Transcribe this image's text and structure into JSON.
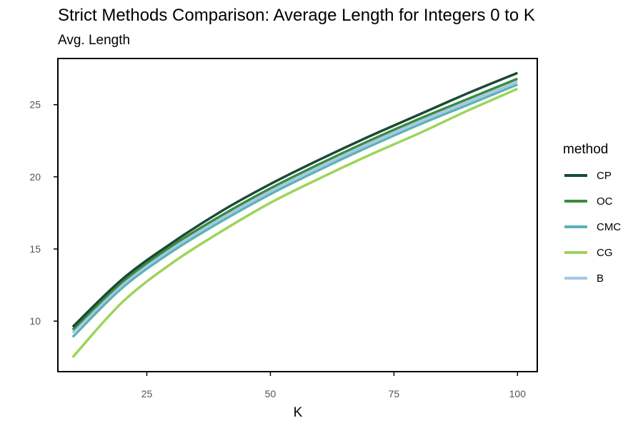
{
  "chart_data": {
    "type": "line",
    "title": "Strict Methods Comparison: Average Length for Integers 0 to K",
    "subtitle": "Avg. Length",
    "xlabel": "K",
    "ylabel": "",
    "xlim": [
      7,
      104
    ],
    "ylim": [
      6.5,
      28.2
    ],
    "xticks": [
      25,
      50,
      75,
      100
    ],
    "yticks": [
      10,
      15,
      20,
      25
    ],
    "grid": false,
    "legend_title": "method",
    "legend_position": "right",
    "x": [
      10,
      20,
      30,
      40,
      50,
      60,
      70,
      80,
      90,
      100
    ],
    "series": [
      {
        "name": "CP",
        "color": "#1a4a35",
        "values": [
          9.6,
          12.9,
          15.4,
          17.6,
          19.5,
          21.2,
          22.8,
          24.3,
          25.8,
          27.2
        ]
      },
      {
        "name": "OC",
        "color": "#3a8c3f",
        "values": [
          9.4,
          12.7,
          15.2,
          17.3,
          19.2,
          20.9,
          22.5,
          24.0,
          25.4,
          26.8
        ]
      },
      {
        "name": "CMC",
        "color": "#5ab3b5",
        "values": [
          8.9,
          12.3,
          14.8,
          16.9,
          18.8,
          20.5,
          22.1,
          23.6,
          25.0,
          26.4
        ]
      },
      {
        "name": "CG",
        "color": "#9dd45a",
        "values": [
          7.5,
          11.3,
          14.0,
          16.2,
          18.2,
          19.9,
          21.5,
          23.0,
          24.6,
          26.1
        ]
      },
      {
        "name": "B",
        "color": "#a7c6e8",
        "values": [
          9.2,
          12.5,
          15.0,
          17.1,
          19.0,
          20.7,
          22.3,
          23.8,
          25.2,
          26.6
        ]
      }
    ]
  }
}
